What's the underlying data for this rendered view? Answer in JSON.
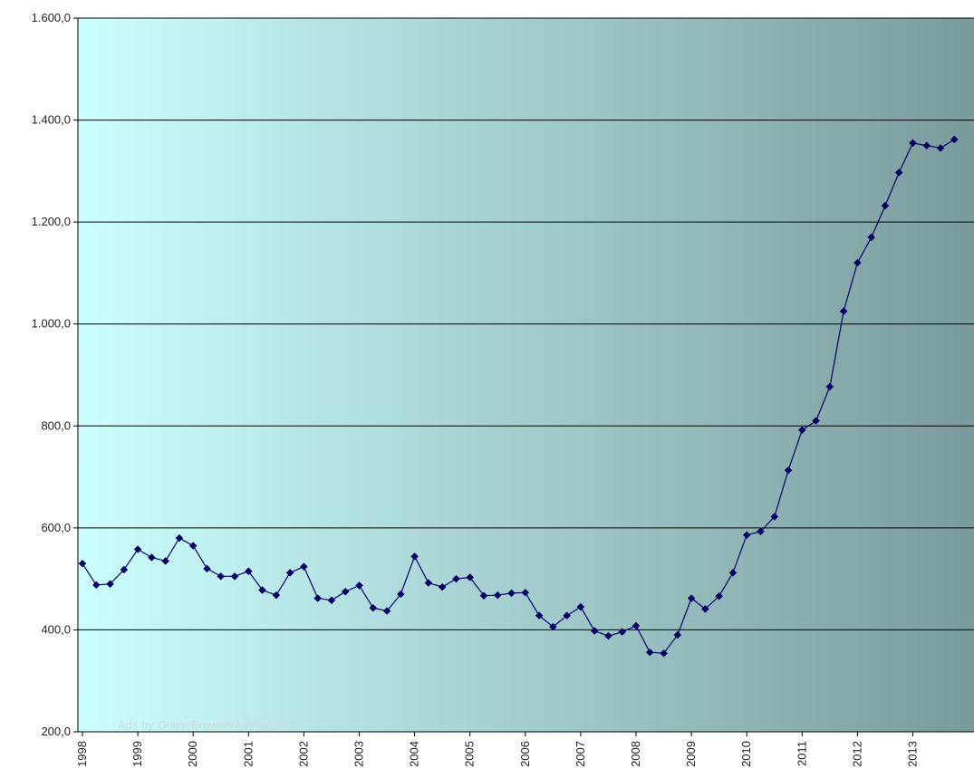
{
  "overlay": {
    "ad_text": "Ads by OnlineBrowserAdvertising"
  },
  "colors": {
    "background_left": "#ccffff",
    "background_right": "#7a9b9b",
    "series": "#000066",
    "grid": "#000000"
  },
  "chart_data": {
    "type": "line",
    "title": "",
    "xlabel": "",
    "ylabel": "",
    "ylim": [
      200,
      1600
    ],
    "yticks": [
      "200,0",
      "400,0",
      "600,0",
      "800,0",
      "1.000,0",
      "1.200,0",
      "1.400,0",
      "1.600,0"
    ],
    "ytick_values": [
      200,
      400,
      600,
      800,
      1000,
      1200,
      1400,
      1600
    ],
    "xticks": [
      "1998",
      "1999",
      "2000",
      "2001",
      "2002",
      "2003",
      "2004",
      "2005",
      "2006",
      "2007",
      "2008",
      "2009",
      "2010",
      "2011",
      "2012",
      "2013"
    ],
    "x_start_year": 1998,
    "points_per_year": 4,
    "grid": true,
    "legend": "none",
    "marker": "diamond",
    "series": [
      {
        "values": [
          530,
          488,
          490,
          518,
          558,
          542,
          535,
          580,
          565,
          520,
          505,
          505,
          515,
          478,
          468,
          512,
          524,
          462,
          458,
          475,
          487,
          443,
          437,
          470,
          544,
          492,
          484,
          500,
          503,
          467,
          468,
          472,
          473,
          428,
          406,
          428,
          445,
          398,
          388,
          396,
          408,
          356,
          354,
          390,
          462,
          441,
          466,
          512,
          586,
          593,
          622,
          713,
          792,
          810,
          877,
          1025,
          1120,
          1170,
          1232,
          1297,
          1355,
          1350,
          1345,
          1362
        ]
      }
    ]
  }
}
